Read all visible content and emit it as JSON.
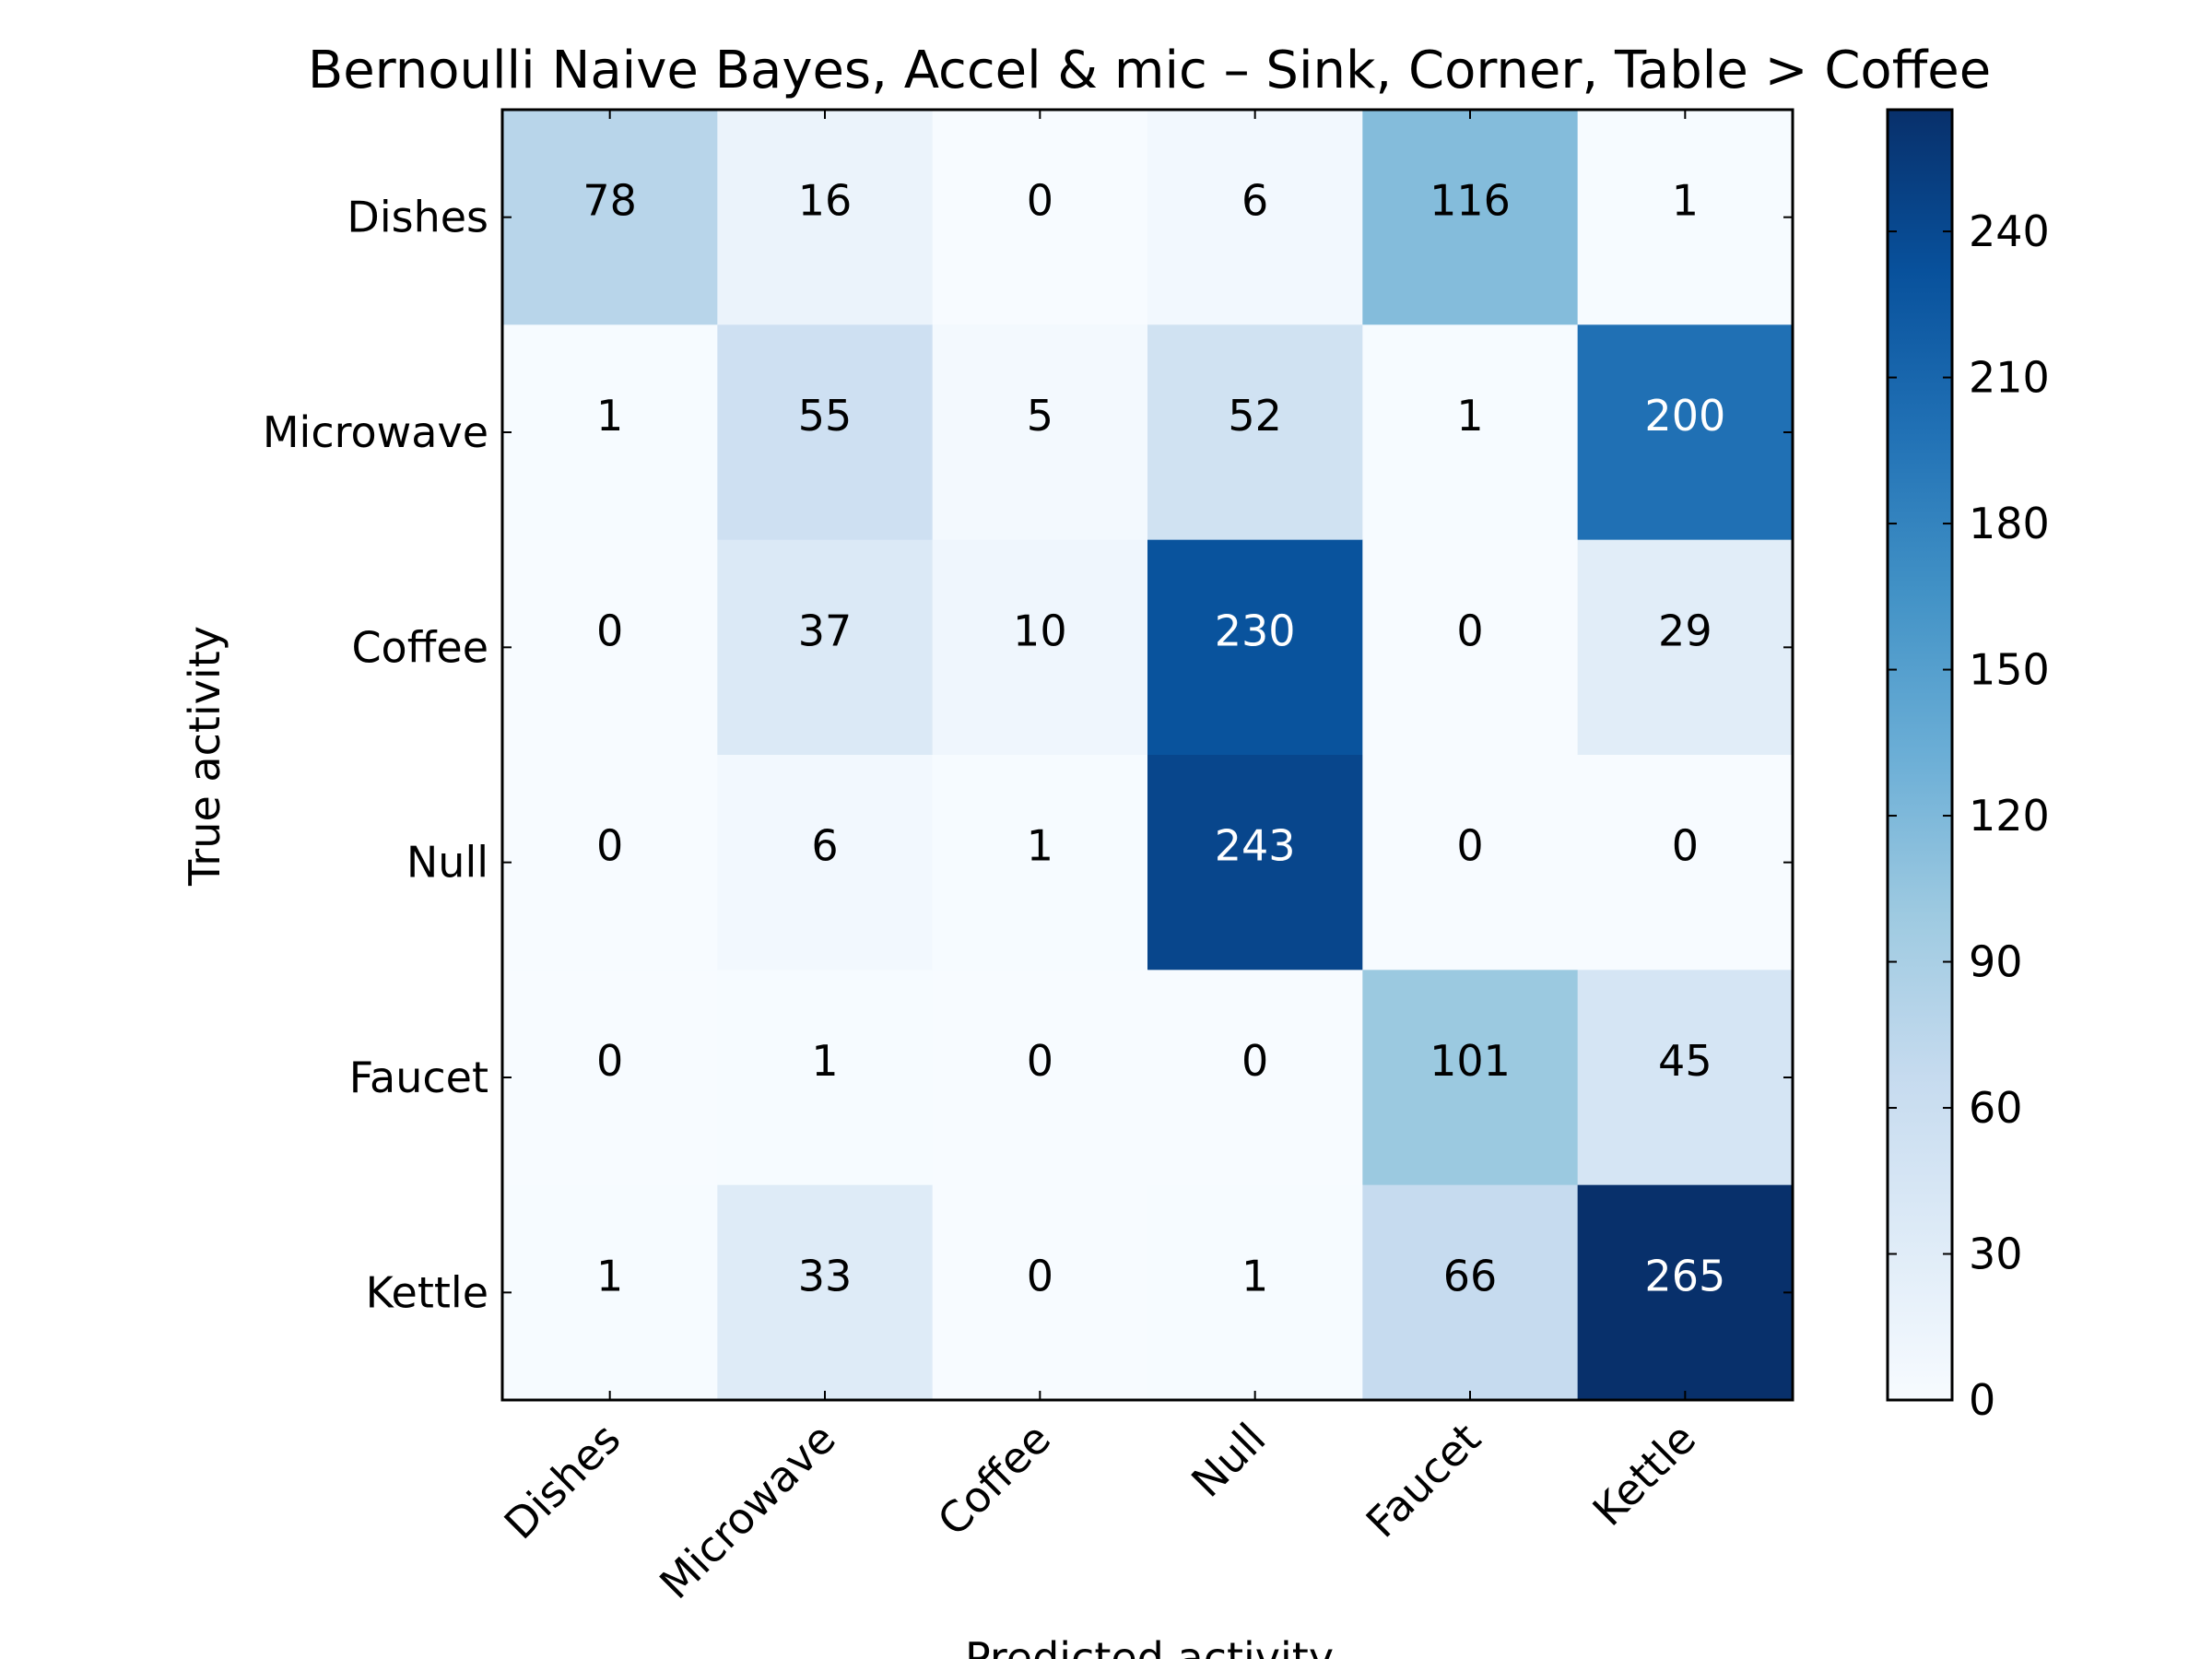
{
  "chart_data": {
    "type": "heatmap",
    "title": "Bernoulli Naive Bayes, Accel & mic – Sink, Corner, Table > Coffee",
    "xlabel": "Predicted activity",
    "ylabel": "True activity",
    "row_labels": [
      "Dishes",
      "Microwave",
      "Coffee",
      "Null",
      "Faucet",
      "Kettle"
    ],
    "col_labels": [
      "Dishes",
      "Microwave",
      "Coffee",
      "Null",
      "Faucet",
      "Kettle"
    ],
    "values": [
      [
        78,
        16,
        0,
        6,
        116,
        1
      ],
      [
        1,
        55,
        5,
        52,
        1,
        200
      ],
      [
        0,
        37,
        10,
        230,
        0,
        29
      ],
      [
        0,
        6,
        1,
        243,
        0,
        0
      ],
      [
        0,
        1,
        0,
        0,
        101,
        45
      ],
      [
        1,
        33,
        0,
        1,
        66,
        265
      ]
    ],
    "colormap": "Blues",
    "colorbar": {
      "range": [
        0,
        265
      ],
      "ticks": [
        0,
        30,
        60,
        90,
        120,
        150,
        180,
        210,
        240
      ]
    },
    "text_color_dark": "#000000",
    "text_color_light": "#ffffff",
    "text_threshold": 132.5
  }
}
